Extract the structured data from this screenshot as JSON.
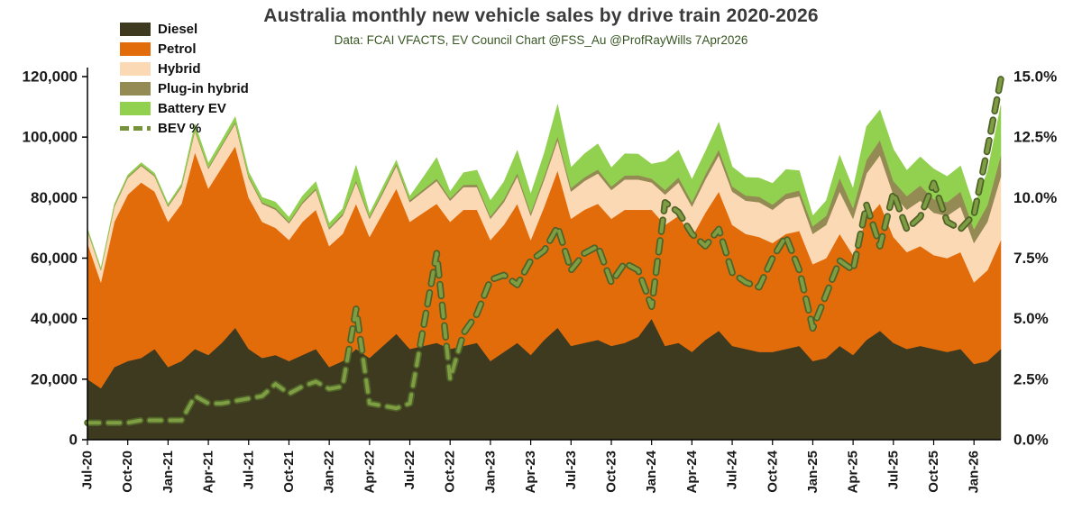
{
  "chart_data": {
    "type": "area",
    "variant": "stacked-area-with-percent-line",
    "title": "Australia monthly new vehicle sales by drive train 2020-2026",
    "subtitle": "Data: FCAI VFACTS, EV Council Chart @FSS_Au @ProfRayWills 7Apr2026",
    "x": [
      "Jul-20",
      "Aug-20",
      "Sep-20",
      "Oct-20",
      "Nov-20",
      "Dec-20",
      "Jan-21",
      "Feb-21",
      "Mar-21",
      "Apr-21",
      "May-21",
      "Jun-21",
      "Jul-21",
      "Aug-21",
      "Sep-21",
      "Oct-21",
      "Nov-21",
      "Dec-21",
      "Jan-22",
      "Feb-22",
      "Mar-22",
      "Apr-22",
      "May-22",
      "Jun-22",
      "Jul-22",
      "Aug-22",
      "Sep-22",
      "Oct-22",
      "Nov-22",
      "Dec-22",
      "Jan-23",
      "Feb-23",
      "Mar-23",
      "Apr-23",
      "May-23",
      "Jun-23",
      "Jul-23",
      "Aug-23",
      "Sep-23",
      "Oct-23",
      "Nov-23",
      "Dec-23",
      "Jan-24",
      "Feb-24",
      "Mar-24",
      "Apr-24",
      "May-24",
      "Jun-24",
      "Jul-24",
      "Aug-24",
      "Sep-24",
      "Oct-24",
      "Nov-24",
      "Dec-24",
      "Jan-25",
      "Feb-25",
      "Mar-25",
      "Apr-25",
      "May-25",
      "Jun-25",
      "Jul-25",
      "Aug-25",
      "Sep-25",
      "Oct-25",
      "Nov-25",
      "Dec-25",
      "Jan-26",
      "Feb-26",
      "Mar-26"
    ],
    "x_tick_labels": [
      "Jul-20",
      "Oct-20",
      "Jan-21",
      "Apr-21",
      "Jul-21",
      "Oct-21",
      "Jan-22",
      "Apr-22",
      "Jul-22",
      "Oct-22",
      "Jan-23",
      "Apr-23",
      "Jul-23",
      "Oct-23",
      "Jan-24",
      "Apr-24",
      "Jul-24",
      "Oct-24",
      "Jan-25",
      "Apr-25",
      "Jul-25",
      "Oct-25",
      "Jan-26"
    ],
    "x_tick_every": 3,
    "series": [
      {
        "name": "Diesel",
        "color": "#3e3a20",
        "values": [
          20000,
          17000,
          24000,
          26000,
          27000,
          30000,
          24000,
          26000,
          30000,
          28000,
          32000,
          37000,
          30000,
          27000,
          28000,
          26000,
          28000,
          30000,
          24000,
          26000,
          30000,
          27000,
          31000,
          35000,
          30000,
          31000,
          32000,
          30000,
          31000,
          32000,
          26000,
          29000,
          32000,
          28000,
          33000,
          37000,
          31000,
          32000,
          33000,
          31000,
          32000,
          34000,
          40000,
          31000,
          32000,
          29000,
          33000,
          36000,
          31000,
          30000,
          29000,
          29000,
          30000,
          31000,
          26000,
          27000,
          31000,
          28000,
          33000,
          36000,
          32000,
          30000,
          31000,
          30000,
          29000,
          30000,
          25000,
          26000,
          30000
        ]
      },
      {
        "name": "Petrol",
        "color": "#e36c0a",
        "values": [
          45000,
          35000,
          48000,
          55000,
          58000,
          52000,
          48000,
          52000,
          65000,
          55000,
          58000,
          60000,
          50000,
          45000,
          42000,
          40000,
          44000,
          46000,
          40000,
          42000,
          48000,
          40000,
          44000,
          48000,
          42000,
          44000,
          46000,
          42000,
          45000,
          44000,
          40000,
          42000,
          46000,
          38000,
          44000,
          52000,
          42000,
          44000,
          45000,
          42000,
          44000,
          42000,
          36000,
          40000,
          42000,
          38000,
          42000,
          46000,
          40000,
          38000,
          38000,
          36000,
          38000,
          38000,
          32000,
          33000,
          37000,
          33000,
          40000,
          42000,
          35000,
          32000,
          33000,
          31000,
          31000,
          32000,
          27000,
          30000,
          36000
        ]
      },
      {
        "name": "Hybrid",
        "color": "#fcd9b5",
        "values": [
          4000,
          4000,
          5000,
          5500,
          5500,
          5000,
          5000,
          5500,
          7000,
          6500,
          7000,
          7500,
          6500,
          6000,
          6000,
          5500,
          6000,
          6500,
          5500,
          6000,
          7000,
          6000,
          6500,
          7500,
          6500,
          7000,
          7500,
          7000,
          7500,
          7500,
          7000,
          7500,
          9000,
          8000,
          9000,
          10000,
          9000,
          9500,
          10000,
          9500,
          10000,
          10000,
          9000,
          10000,
          11000,
          10000,
          11000,
          12000,
          11000,
          11000,
          11500,
          11000,
          11500,
          11500,
          10000,
          11000,
          14000,
          12000,
          15000,
          16000,
          14000,
          14000,
          15000,
          14000,
          14000,
          15000,
          13000,
          16000,
          21000
        ]
      },
      {
        "name": "Plug-in hybrid",
        "color": "#948a54",
        "values": [
          300,
          300,
          350,
          400,
          400,
          400,
          400,
          400,
          500,
          450,
          500,
          550,
          500,
          500,
          550,
          500,
          550,
          600,
          550,
          600,
          700,
          600,
          650,
          700,
          650,
          700,
          750,
          700,
          750,
          800,
          800,
          900,
          1100,
          1000,
          1100,
          1300,
          1200,
          1200,
          1300,
          1200,
          1300,
          1400,
          1300,
          1500,
          1700,
          1500,
          1700,
          1900,
          1700,
          1700,
          1800,
          1700,
          1800,
          1900,
          2500,
          3000,
          4500,
          3500,
          4500,
          5000,
          4500,
          4500,
          5000,
          4500,
          4500,
          5000,
          4500,
          5500,
          7000
        ]
      },
      {
        "name": "Battery EV",
        "color": "#92d050",
        "values": [
          500,
          400,
          500,
          600,
          700,
          700,
          600,
          700,
          1800,
          1400,
          1500,
          1700,
          1500,
          1600,
          2000,
          1500,
          2000,
          2200,
          1500,
          1700,
          5000,
          1200,
          1500,
          1200,
          1300,
          4000,
          7000,
          2300,
          4000,
          4800,
          5200,
          5800,
          7500,
          6200,
          7500,
          10500,
          6800,
          7800,
          8500,
          6200,
          7200,
          7000,
          4800,
          9500,
          9000,
          7500,
          7500,
          9000,
          6500,
          6000,
          6200,
          7000,
          8000,
          6500,
          3500,
          5000,
          7500,
          6500,
          11000,
          10000,
          10500,
          8500,
          9500,
          10000,
          8500,
          8500,
          7500,
          11000,
          16500
        ]
      }
    ],
    "line_series": {
      "name": "BEV %",
      "color": "#7f9e44",
      "outline": "#4f6228",
      "axis": "right",
      "values": [
        0.7,
        0.7,
        0.7,
        0.7,
        0.8,
        0.8,
        0.8,
        0.8,
        1.8,
        1.5,
        1.5,
        1.6,
        1.7,
        1.8,
        2.3,
        1.9,
        2.2,
        2.4,
        2.1,
        2.2,
        5.4,
        1.5,
        1.4,
        1.3,
        1.5,
        4.6,
        7.7,
        2.5,
        4.4,
        5.2,
        6.6,
        6.8,
        6.4,
        7.4,
        7.8,
        8.8,
        7.0,
        7.7,
        8.0,
        6.5,
        7.3,
        7.0,
        5.5,
        9.8,
        9.4,
        8.5,
        8.0,
        8.7,
        6.9,
        6.5,
        6.3,
        7.5,
        8.4,
        7.0,
        4.6,
        6.0,
        7.4,
        7.0,
        9.7,
        8.0,
        10.2,
        8.7,
        9.2,
        10.6,
        9.0,
        8.7,
        9.3,
        12.0,
        14.9
      ]
    },
    "left_axis": {
      "min": 0,
      "max": 120000,
      "tick_step": 20000,
      "labels": [
        "0",
        "20,000",
        "40,000",
        "60,000",
        "80,000",
        "100,000",
        "120,000"
      ]
    },
    "right_axis": {
      "min": 0,
      "max": 15,
      "tick_step": 2.5,
      "labels": [
        "0.0%",
        "2.5%",
        "5.0%",
        "7.5%",
        "10.0%",
        "12.5%",
        "15.0%"
      ]
    },
    "grid": "off",
    "legend_position": "top-left"
  },
  "legend": {
    "items": [
      {
        "label": "Diesel",
        "color": "#3e3a20",
        "type": "area"
      },
      {
        "label": "Petrol",
        "color": "#e36c0a",
        "type": "area"
      },
      {
        "label": "Hybrid",
        "color": "#fcd9b5",
        "type": "area"
      },
      {
        "label": "Plug-in hybrid",
        "color": "#948a54",
        "type": "area"
      },
      {
        "label": "Battery EV",
        "color": "#92d050",
        "type": "area"
      },
      {
        "label": "BEV %",
        "color": "#76933c",
        "type": "dashed-line"
      }
    ]
  }
}
